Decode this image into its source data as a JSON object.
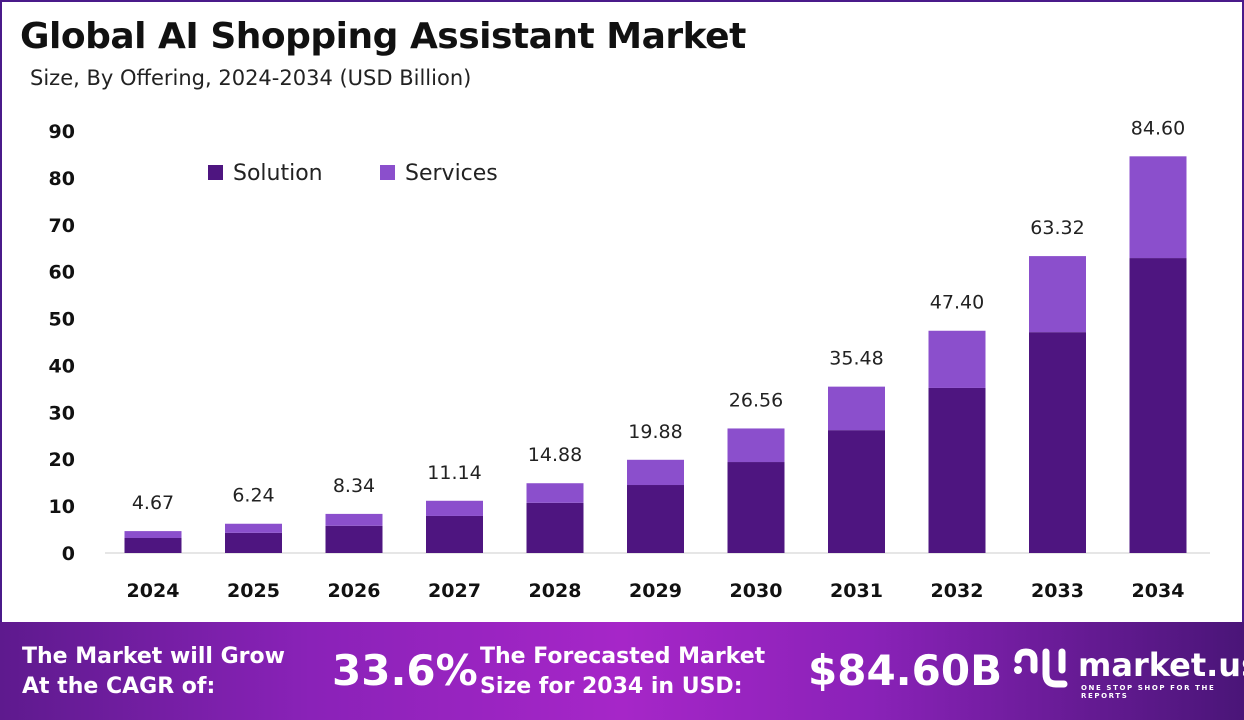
{
  "header": {
    "title": "Global AI Shopping Assistant Market",
    "subtitle": "Size, By Offering, 2024-2034 (USD Billion)"
  },
  "chart_data": {
    "type": "bar",
    "stacked": true,
    "categories": [
      "2024",
      "2025",
      "2026",
      "2027",
      "2028",
      "2029",
      "2030",
      "2031",
      "2032",
      "2033",
      "2034"
    ],
    "series": [
      {
        "name": "Solution",
        "color": "#4e1580",
        "values": [
          3.2,
          4.3,
          5.8,
          7.9,
          10.7,
          14.5,
          19.4,
          26.2,
          35.2,
          47.1,
          62.9
        ]
      },
      {
        "name": "Services",
        "color": "#8b4fcc",
        "values": [
          1.47,
          1.94,
          2.54,
          3.24,
          4.18,
          5.38,
          7.16,
          9.28,
          12.2,
          16.22,
          21.7
        ]
      }
    ],
    "totals": [
      "4.67",
      "6.24",
      "8.34",
      "11.14",
      "14.88",
      "19.88",
      "26.56",
      "35.48",
      "47.40",
      "63.32",
      "84.60"
    ],
    "yticks": [
      "0",
      "10",
      "20",
      "30",
      "40",
      "50",
      "60",
      "70",
      "80",
      "90"
    ],
    "ylim": [
      0,
      90
    ],
    "grid": false,
    "legend": "top-left"
  },
  "footer": {
    "cagr_label_1": "The Market will Grow",
    "cagr_label_2": "At the CAGR of:",
    "cagr_value": "33.6%",
    "forecast_label_1": "The Forecasted Market",
    "forecast_label_2": "Size for 2034 in USD:",
    "forecast_value": "$84.60B",
    "brand": "market.us",
    "tagline": "ONE STOP SHOP FOR THE REPORTS"
  }
}
